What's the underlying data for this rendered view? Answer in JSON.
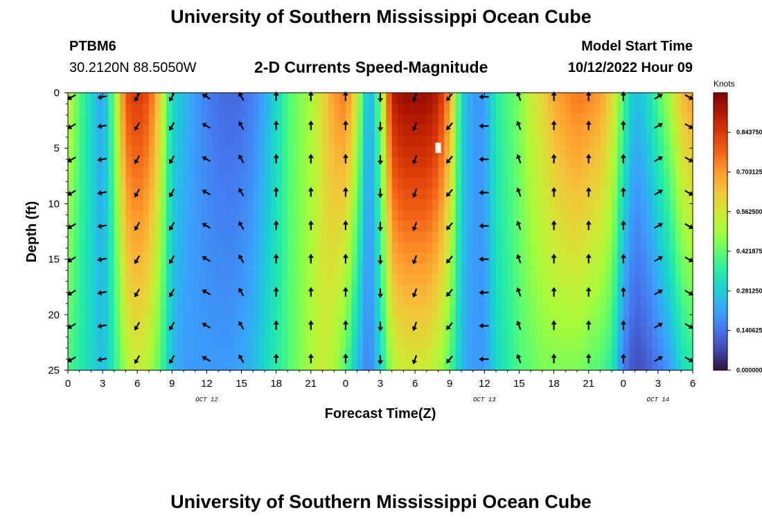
{
  "header": {
    "title": "University of Southern Mississippi Ocean Cube",
    "station": "PTBM6",
    "coords": "30.2120N  88.5050W",
    "subtitle": "2-D Currents Speed-Magnitude",
    "model_start_label": "Model Start Time",
    "model_start_value": "10/12/2022 Hour 09"
  },
  "footer": {
    "title": "University of Southern Mississippi Ocean Cube"
  },
  "chart_data": {
    "type": "heatmap",
    "title": "2-D Currents Speed-Magnitude",
    "xlabel": "Forecast Time(Z)",
    "ylabel": "Depth (ft)",
    "x_ticks": [
      "0",
      "3",
      "6",
      "9",
      "12",
      "15",
      "18",
      "21",
      "0",
      "3",
      "6",
      "9",
      "12",
      "15",
      "18",
      "21",
      "0",
      "3",
      "6"
    ],
    "x_range_hours": [
      0,
      54
    ],
    "date_labels": [
      {
        "label": "OCT 12",
        "hour": 12
      },
      {
        "label": "OCT 13",
        "hour": 36
      },
      {
        "label": "OCT 14",
        "hour": 51
      }
    ],
    "y_ticks": [
      "0",
      "5",
      "10",
      "15",
      "20",
      "25"
    ],
    "ylim": [
      0,
      25
    ],
    "y_inverted": true,
    "colorbar": {
      "unit": "Knots",
      "range": [
        0,
        0.984
      ],
      "ticks": [
        {
          "value": 0.0,
          "label": "0.000000"
        },
        {
          "value": 0.140625,
          "label": "0.140625"
        },
        {
          "value": 0.28125,
          "label": "0.281250"
        },
        {
          "value": 0.421875,
          "label": "0.421875"
        },
        {
          "value": 0.5625,
          "label": "0.562500"
        },
        {
          "value": 0.703125,
          "label": "0.703125"
        },
        {
          "value": 0.84375,
          "label": "0.843750"
        }
      ],
      "colors": [
        "#30123b",
        "#4145ab",
        "#4675ed",
        "#39a2fc",
        "#1bcfd4",
        "#24eca6",
        "#61fc6c",
        "#a4fc3b",
        "#d1e834",
        "#f3c63a",
        "#fe9b2d",
        "#f36315",
        "#d93806",
        "#b11901",
        "#7a0403"
      ]
    },
    "speed_profile": {
      "hours": [
        0,
        1,
        2,
        3,
        4,
        5,
        6,
        7,
        8,
        9,
        10,
        11,
        12,
        13,
        14,
        15,
        16,
        17,
        18,
        19,
        20,
        21,
        22,
        23,
        24,
        25,
        26,
        27,
        28,
        29,
        30,
        31,
        32,
        33,
        34,
        35,
        36,
        37,
        38,
        39,
        40,
        41,
        42,
        43,
        44,
        45,
        46,
        47,
        48,
        49,
        50,
        51,
        52,
        53,
        54
      ],
      "surface_knots": [
        0.55,
        0.4,
        0.3,
        0.2,
        0.45,
        0.8,
        0.85,
        0.8,
        0.6,
        0.3,
        0.25,
        0.2,
        0.16,
        0.13,
        0.12,
        0.13,
        0.16,
        0.22,
        0.3,
        0.4,
        0.45,
        0.5,
        0.6,
        0.7,
        0.75,
        0.55,
        0.2,
        0.45,
        0.9,
        0.95,
        0.95,
        0.95,
        0.9,
        0.7,
        0.3,
        0.2,
        0.2,
        0.35,
        0.4,
        0.45,
        0.55,
        0.6,
        0.68,
        0.72,
        0.75,
        0.73,
        0.7,
        0.6,
        0.4,
        0.25,
        0.3,
        0.4,
        0.5,
        0.65,
        0.7
      ],
      "bottom_knots": [
        0.4,
        0.35,
        0.3,
        0.25,
        0.35,
        0.5,
        0.55,
        0.5,
        0.4,
        0.25,
        0.2,
        0.2,
        0.2,
        0.2,
        0.2,
        0.22,
        0.25,
        0.3,
        0.35,
        0.4,
        0.45,
        0.5,
        0.55,
        0.5,
        0.4,
        0.25,
        0.15,
        0.3,
        0.5,
        0.55,
        0.55,
        0.55,
        0.5,
        0.4,
        0.25,
        0.2,
        0.2,
        0.3,
        0.35,
        0.4,
        0.42,
        0.45,
        0.45,
        0.45,
        0.45,
        0.42,
        0.4,
        0.35,
        0.15,
        0.08,
        0.1,
        0.15,
        0.2,
        0.3,
        0.35
      ]
    },
    "arrow_grid": {
      "hours": [
        0,
        3,
        6,
        9,
        12,
        15,
        18,
        21,
        24,
        27,
        30,
        33,
        36,
        39,
        42,
        45,
        48,
        51,
        54
      ],
      "depths_ft": [
        0,
        3,
        6,
        9,
        12,
        15,
        18,
        21,
        24
      ],
      "direction_deg_by_hour": [
        240,
        260,
        210,
        210,
        300,
        330,
        0,
        0,
        0,
        180,
        200,
        220,
        270,
        340,
        0,
        0,
        0,
        60,
        120
      ]
    },
    "annotations": [
      {
        "type": "marker",
        "hour": 32,
        "depth_ft": 5
      }
    ]
  }
}
